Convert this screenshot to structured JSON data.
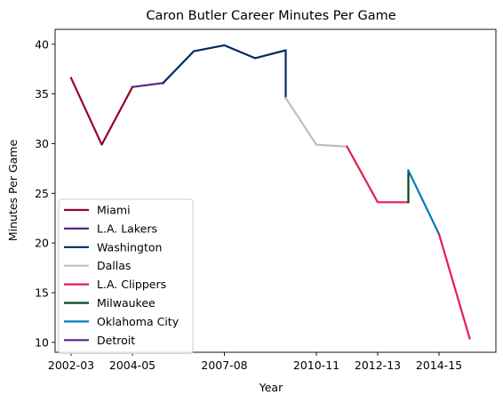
{
  "chart_data": {
    "type": "line",
    "title": "Caron Butler Career Minutes Per Game",
    "xlabel": "Year",
    "ylabel": "Minutes Per Game",
    "categories": [
      "2002-03",
      "2003-04",
      "2004-05",
      "2005-06",
      "2006-07",
      "2007-08",
      "2008-09",
      "2009-10",
      "2010-11",
      "2011-12",
      "2012-13",
      "2013-14",
      "2014-15",
      "2015-16"
    ],
    "x_tick_labels": [
      "2002-03",
      "2004-05",
      "2007-08",
      "2010-11",
      "2012-13",
      "2014-15"
    ],
    "y_ticks": [
      10,
      15,
      20,
      25,
      30,
      35,
      40
    ],
    "ylim": [
      9.0,
      41.5
    ],
    "legend": "lower-left",
    "grid": false,
    "series": [
      {
        "name": "Miami",
        "color": "#98002e",
        "x": [
          "2002-03",
          "2003-04",
          "2004-05"
        ],
        "values": [
          36.6,
          29.9,
          35.7
        ]
      },
      {
        "name": "L.A. Lakers",
        "color": "#552583",
        "x": [
          "2004-05",
          "2005-06"
        ],
        "values": [
          35.7,
          36.1
        ]
      },
      {
        "name": "Washington",
        "color": "#002b5c",
        "x": [
          "2005-06",
          "2006-07",
          "2007-08",
          "2008-09",
          "2009-10",
          "2009-10"
        ],
        "values": [
          36.1,
          39.3,
          39.9,
          38.6,
          39.4,
          34.6
        ]
      },
      {
        "name": "Dallas",
        "color": "#bfbfbf",
        "x": [
          "2009-10",
          "2010-11",
          "2011-12"
        ],
        "values": [
          34.6,
          29.9,
          29.7
        ]
      },
      {
        "name": "L.A. Clippers",
        "color": "#e31f4f",
        "x": [
          "2011-12",
          "2012-13",
          "2013-14"
        ],
        "values": [
          29.7,
          24.1,
          24.1
        ]
      },
      {
        "name": "Milwaukee",
        "color": "#00471b",
        "x": [
          "2013-14",
          "2013-14"
        ],
        "values": [
          24.1,
          27.3
        ]
      },
      {
        "name": "Oklahoma City",
        "color": "#007ac1",
        "x": [
          "2013-14",
          "2014-15"
        ],
        "values": [
          27.3,
          20.9
        ]
      },
      {
        "name": "Detroit",
        "color": "#552583",
        "x": [],
        "values": []
      }
    ],
    "unlabeled_segment": {
      "color": "#e31f4f",
      "x": [
        "2014-15",
        "2015-16"
      ],
      "values": [
        20.9,
        10.4
      ]
    }
  }
}
